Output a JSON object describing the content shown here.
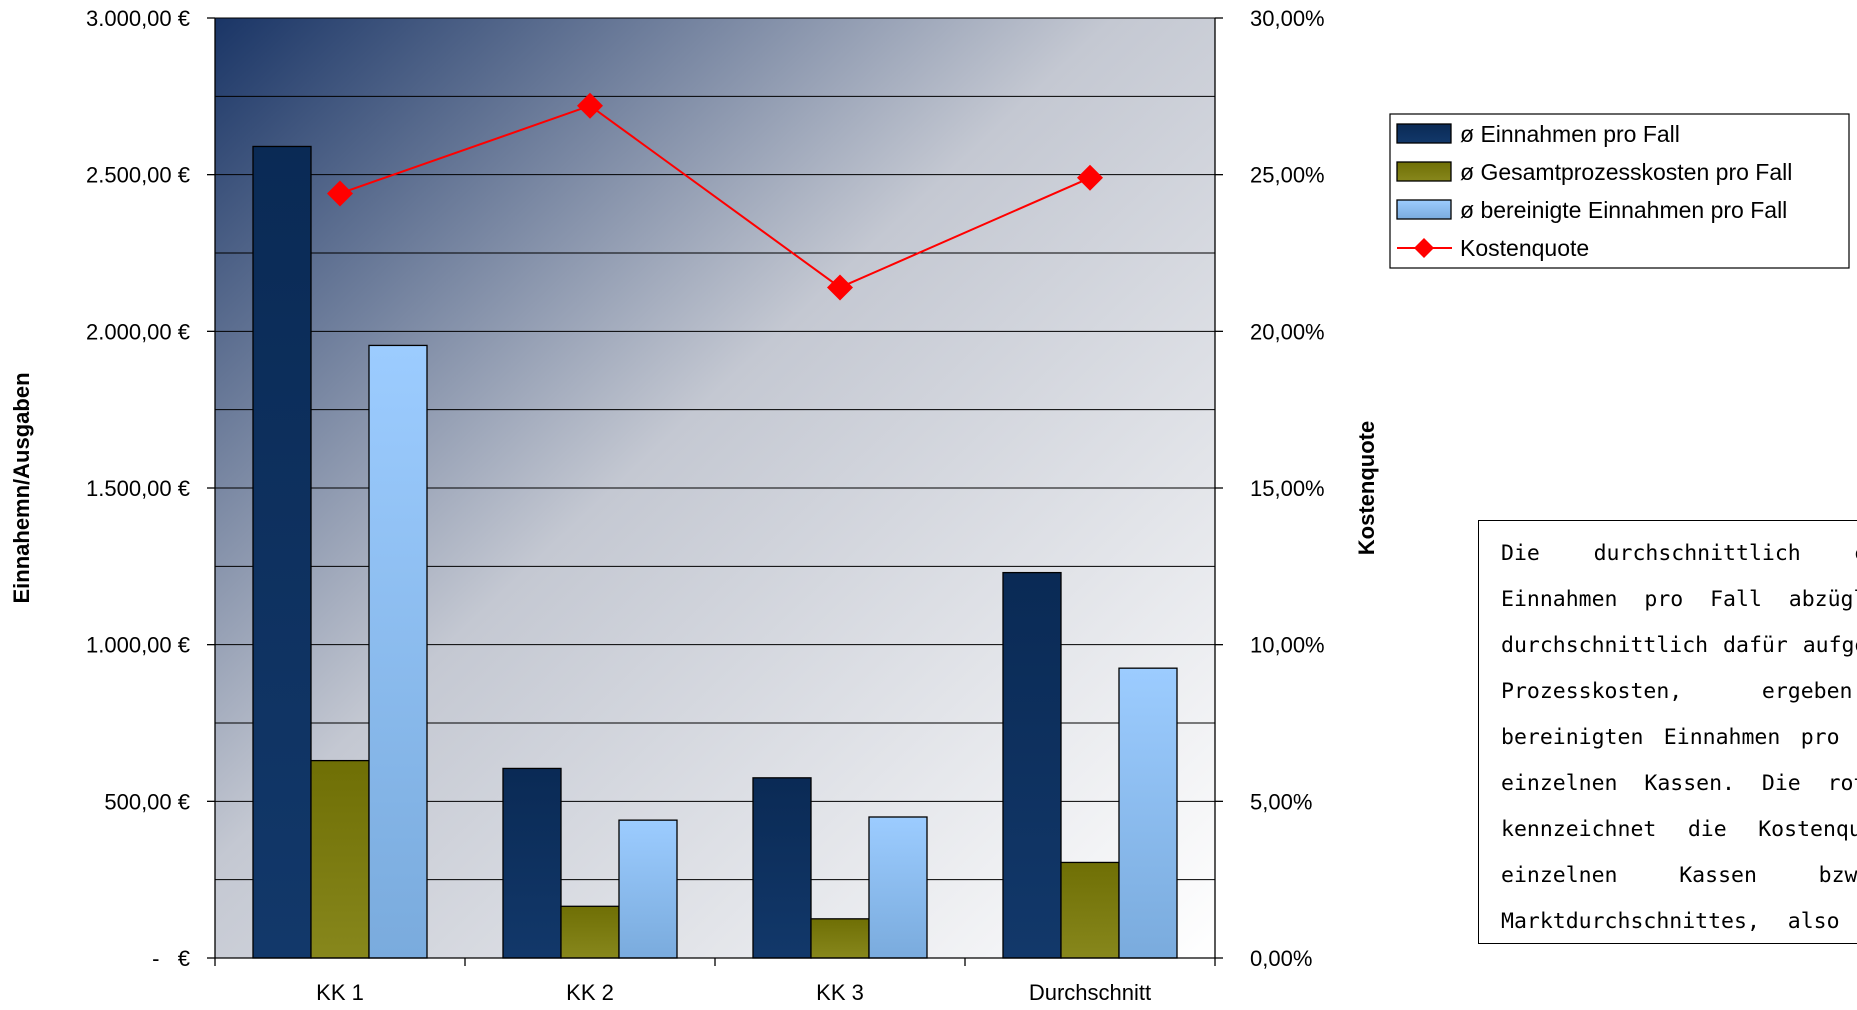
{
  "chart_data": {
    "type": "bar",
    "categories": [
      "KK 1",
      "KK 2",
      "KK 3",
      "Durchschnitt"
    ],
    "series": [
      {
        "name": "ø Einnahmen pro Fall",
        "type": "bar",
        "axis": "left",
        "color": "#0f2f5c",
        "values": [
          2590,
          605,
          575,
          1230
        ]
      },
      {
        "name": "ø Gesamtprozesskosten pro Fall",
        "type": "bar",
        "axis": "left",
        "color": "#7a7a10",
        "values": [
          630,
          165,
          125,
          305
        ]
      },
      {
        "name": "ø bereinigte Einnahmen pro Fall",
        "type": "bar",
        "axis": "left",
        "color": "#8fc0ee",
        "values": [
          1955,
          440,
          450,
          925
        ]
      },
      {
        "name": "Kostenquote",
        "type": "line",
        "axis": "right",
        "color": "#ff0000",
        "values": [
          0.244,
          0.272,
          0.214,
          0.249
        ]
      }
    ],
    "ylabel": "Einnahemn/Ausgaben",
    "y2label": "Kostenquote",
    "ylim": [
      0,
      3000
    ],
    "y2lim": [
      0,
      0.3
    ],
    "y_ticks": [
      "-   €",
      "500,00 €",
      "1.000,00 €",
      "1.500,00 €",
      "2.000,00 €",
      "2.500,00 €",
      "3.000,00 €"
    ],
    "y2_ticks": [
      "0,00%",
      "5,00%",
      "10,00%",
      "15,00%",
      "20,00%",
      "25,00%",
      "30,00%"
    ],
    "grid": true,
    "legend_position": "right"
  },
  "note": {
    "text": "Die durchschnittlich erzielten Einnahmen pro Fall abzüglich der durchschnittlich dafür aufgewendeten Prozesskosten, ergeben die bereinigten Einnahmen pro Fall der einzelnen Kassen. Die rote Linie kennzeichnet die Kostenquote der einzelnen Kassen bzw. des Marktdurchschnittes, also Ausgaben bzw. die Kostenquote."
  }
}
